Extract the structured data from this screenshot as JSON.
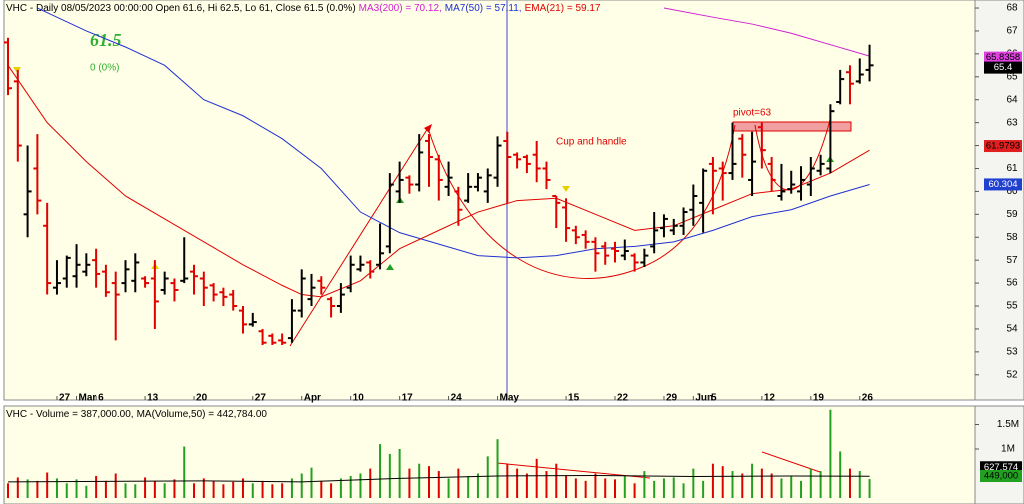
{
  "chart_data": {
    "type": "ohlc",
    "header": [
      {
        "text": "VHC - Daily 08/05/2023 00:00:00 Open 61.6, Hi 62.5, Lo 61, Close 61.5 (0.0%)",
        "color": "#000000"
      },
      {
        "text": "MA3(200) = 70.12,",
        "color": "#d020d0"
      },
      {
        "text": "MA7(50) = 57.11,",
        "color": "#2030d0"
      },
      {
        "text": "EMA(21) = 59.17",
        "color": "#e00000"
      }
    ],
    "big_price": 61.5,
    "change_label": "0  (0%)",
    "annotations": [
      "Cup and handle",
      "pivot=63"
    ],
    "up_color": "#000000",
    "down_color": "#e00000",
    "xlim": [
      -0.41,
      98.77
    ],
    "xticks": [
      {
        "value": 5,
        "label": "27"
      },
      {
        "value": 7,
        "label": "Mar"
      },
      {
        "value": 9,
        "label": "6"
      },
      {
        "value": 14,
        "label": "13"
      },
      {
        "value": 19,
        "label": "20"
      },
      {
        "value": 25,
        "label": "27"
      },
      {
        "value": 30,
        "label": "Apr"
      },
      {
        "value": 35,
        "label": "10"
      },
      {
        "value": 40,
        "label": "17"
      },
      {
        "value": 45,
        "label": "24"
      },
      {
        "value": 50,
        "label": "May"
      },
      {
        "value": 57,
        "label": "15"
      },
      {
        "value": 62,
        "label": "22"
      },
      {
        "value": 67,
        "label": "29"
      },
      {
        "value": 70,
        "label": "Jun"
      },
      {
        "value": 71.6,
        "label": "5"
      },
      {
        "value": 77,
        "label": "12"
      },
      {
        "value": 82,
        "label": "19"
      },
      {
        "value": 87,
        "label": "26"
      }
    ],
    "ylim": [
      50.9,
      68.35
    ],
    "yticks": [
      52,
      53,
      54,
      55,
      56,
      57,
      58,
      59,
      60,
      61,
      62,
      63,
      64,
      65,
      66,
      67,
      68
    ],
    "open": [
      66.5,
      64.8,
      59,
      61,
      58.5,
      55.8,
      56.2,
      56.3,
      56.5,
      57,
      56.5,
      56,
      56,
      56.1,
      56.2,
      56.2,
      55.7,
      56,
      56.1,
      56.5,
      56.2,
      55.9,
      55.6,
      55.5,
      54.8,
      54.2,
      53.9,
      53.7,
      53.5,
      53.6,
      54.8,
      55.3,
      56.1,
      55.3,
      55,
      55.8,
      56.6,
      56.9,
      56.8,
      57.6,
      60,
      60.6,
      60.3,
      62.2,
      61.4,
      60.2,
      60,
      59.6,
      60.2,
      60,
      60.6,
      62.2,
      61.6,
      61.5,
      61.6,
      61,
      59.8,
      59.3,
      58.3,
      58.1,
      57.8,
      57.6,
      57.5,
      57.2,
      57.2,
      56.9,
      57.6,
      58.4,
      58.3,
      58.5,
      59.2,
      59.5,
      61.2,
      61,
      60.8,
      62.3,
      60.5,
      62.8,
      61.2,
      59.8,
      60.1,
      60,
      60.3,
      60.9,
      61,
      63.9,
      65.2,
      64.8,
      65.3
    ],
    "high": [
      66.7,
      65.3,
      62,
      62.5,
      59.5,
      57,
      57.2,
      57.7,
      57.3,
      57.5,
      56.8,
      56.5,
      57,
      57.3,
      56.3,
      57,
      56.5,
      56.2,
      58,
      56.8,
      56.5,
      56,
      55.8,
      55.7,
      55,
      54.7,
      54,
      53.8,
      53.8,
      55.3,
      56.6,
      56.4,
      56.3,
      55.4,
      56,
      57.2,
      57.2,
      57,
      58.6,
      60.8,
      61.3,
      60.7,
      62.5,
      62.5,
      61.6,
      61.3,
      60.2,
      60.8,
      60.8,
      61,
      62.4,
      62.6,
      61.7,
      61.6,
      62.2,
      61.3,
      59.8,
      59.7,
      58.5,
      58.3,
      58,
      57.8,
      57.8,
      57.9,
      57.3,
      57.5,
      59.1,
      59,
      58.8,
      59.3,
      60.3,
      61,
      61.5,
      61.3,
      63,
      62.5,
      62.6,
      63,
      61.5,
      61.2,
      60.9,
      61.1,
      61.5,
      61.6,
      63.8,
      65.3,
      65.5,
      65.8,
      66.4
    ],
    "low": [
      64.2,
      61.3,
      58,
      59,
      55.5,
      55.5,
      55.8,
      55.8,
      56.3,
      55.8,
      55.4,
      53.5,
      55.6,
      55.6,
      55.8,
      54,
      55.5,
      55.2,
      56,
      55.5,
      55,
      55.2,
      55,
      54.8,
      53.8,
      54.1,
      53.3,
      53.3,
      53.3,
      53.4,
      54.5,
      55,
      55.5,
      54.5,
      54.7,
      55.6,
      56.5,
      56.2,
      56.6,
      57.3,
      59.5,
      59.9,
      60,
      60.2,
      59.6,
      59.8,
      58.5,
      59.5,
      60,
      59.5,
      60.2,
      59.5,
      61,
      60.8,
      60.4,
      60.1,
      58.4,
      57.8,
      57.7,
      57.5,
      56.5,
      56.8,
      56.9,
      57,
      56.5,
      56.7,
      57.3,
      58,
      58.1,
      58.1,
      58.5,
      58.2,
      59,
      59.6,
      60.5,
      60.6,
      59.8,
      61,
      60,
      59.6,
      59.9,
      59.6,
      59.8,
      60.7,
      60.8,
      63.8,
      63.8,
      64.7,
      64.8
    ],
    "close": [
      64.5,
      62,
      60,
      59.6,
      56,
      56,
      57.1,
      56.8,
      56.8,
      56.4,
      55.6,
      55.5,
      56.6,
      56.9,
      56,
      55.2,
      56.2,
      55.7,
      56.2,
      56.3,
      55.8,
      55.5,
      55.4,
      55,
      54.2,
      54.3,
      53.4,
      53.4,
      53.4,
      54.8,
      56.2,
      55.8,
      55.8,
      55,
      55.5,
      56.8,
      56.8,
      56.5,
      57.3,
      60.3,
      60.5,
      60.3,
      61.7,
      61.5,
      60.5,
      60.6,
      59.2,
      60.2,
      60.6,
      60.7,
      62,
      61.5,
      61.4,
      61.2,
      61,
      60.5,
      59.5,
      58.4,
      58,
      57.8,
      57.3,
      57.2,
      57.4,
      57.4,
      56.9,
      57.2,
      58.3,
      58.8,
      58.5,
      59.1,
      59.8,
      60.9,
      60.9,
      60.8,
      61.2,
      61.6,
      61.3,
      61.8,
      60.5,
      60,
      60.3,
      60.5,
      61,
      61.2,
      63.5,
      64.9,
      64.7,
      65.1,
      65.5
    ],
    "lines": [
      {
        "color": "#d020d0",
        "x": [
          67,
          72,
          76,
          80,
          84,
          88
        ],
        "values": [
          68,
          67.6,
          67.3,
          66.9,
          66.4,
          65.9
        ]
      },
      {
        "color": "#2030d0",
        "x": [
          3,
          8,
          12,
          16,
          20,
          24,
          28,
          32,
          36,
          40,
          44,
          48,
          52,
          56,
          60,
          64,
          68,
          72,
          76,
          80,
          84,
          88
        ],
        "values": [
          68,
          67,
          66.3,
          65.5,
          64,
          63.3,
          62.3,
          61,
          59.1,
          58.2,
          57.7,
          57.2,
          57.1,
          57.2,
          57.5,
          57.6,
          57.8,
          58.3,
          58.9,
          59.2,
          59.8,
          60.3
        ]
      },
      {
        "color": "#e00000",
        "x": [
          0,
          4,
          8,
          12,
          16,
          20,
          24,
          28,
          30,
          32,
          36,
          40,
          44,
          48,
          52,
          56,
          60,
          64,
          68,
          72,
          76,
          80,
          84,
          88
        ],
        "values": [
          65.5,
          63,
          61.3,
          59.8,
          58.8,
          57.8,
          56.8,
          55.9,
          55.5,
          55.4,
          56.1,
          57.5,
          58.3,
          59.1,
          59.6,
          59.7,
          59,
          58.3,
          58.5,
          59.2,
          59.9,
          60.1,
          60.8,
          61.8
        ]
      }
    ],
    "marker_labels": [
      {
        "value": 65.8358,
        "bg": "#e040e0",
        "fg": "#000000"
      },
      {
        "value": 65.4,
        "bg": "#000000",
        "fg": "#ffffff"
      },
      {
        "value": 61.9793,
        "bg": "#e02020",
        "fg": "#000000"
      },
      {
        "value": 60.304,
        "bg": "#2040d0",
        "fg": "#ffffff"
      }
    ],
    "volume": {
      "header": [
        {
          "text": "VHC - Volume = 387,000.00,",
          "color": "#000000"
        },
        {
          "text": "MA(Volume,50) = 442,784.00",
          "color": "#000000"
        }
      ],
      "up_color": "#22a022",
      "down_color": "#e00000",
      "ylim": [
        0,
        1898000
      ],
      "yticks": [
        {
          "value": 1000000,
          "label": "1M"
        },
        {
          "value": 1500000,
          "label": "1.5M"
        }
      ],
      "values": [
        300000,
        420000,
        380000,
        350000,
        520000,
        400000,
        300000,
        380000,
        250000,
        450000,
        350000,
        500000,
        300000,
        280000,
        420000,
        350000,
        300000,
        380000,
        1050000,
        300000,
        400000,
        350000,
        280000,
        330000,
        400000,
        300000,
        350000,
        280000,
        300000,
        400000,
        500000,
        620000,
        350000,
        300000,
        400000,
        450000,
        500000,
        600000,
        1100000,
        900000,
        1000000,
        600000,
        700000,
        650000,
        550000,
        400000,
        600000,
        450000,
        500000,
        850000,
        1200000,
        700000,
        600000,
        500000,
        800000,
        550000,
        700000,
        450000,
        400000,
        350000,
        500000,
        400000,
        380000,
        450000,
        300000,
        550000,
        350000,
        400000,
        420000,
        300000,
        600000,
        350000,
        700000,
        650000,
        550000,
        500000,
        700000,
        600000,
        500000,
        400000,
        450000,
        350000,
        600000,
        550000,
        1800000,
        950000,
        600000,
        550000,
        387000
      ],
      "ma": {
        "color": "#000000",
        "x": [
          0,
          10,
          20,
          30,
          40,
          50,
          60,
          70,
          80,
          88
        ],
        "values": [
          330000,
          340000,
          350000,
          330000,
          400000,
          450000,
          460000,
          440000,
          450000,
          442784
        ]
      },
      "marker_labels": [
        {
          "value": 627574,
          "label": "627,574",
          "bg": "#000000",
          "fg": "#ffffff"
        },
        {
          "value": 449000,
          "label": "449,000",
          "bg": "#22a022",
          "fg": "#000000"
        }
      ]
    }
  }
}
